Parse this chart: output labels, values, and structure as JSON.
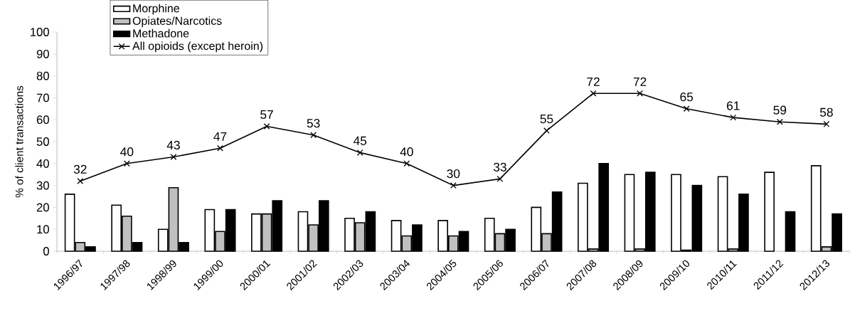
{
  "chart_data": {
    "type": "bar",
    "ylabel": "% of client transactions",
    "categories": [
      "1996/97",
      "1997/98",
      "1998/99",
      "1999/00",
      "2000/01",
      "2001/02",
      "2002/03",
      "2003/04",
      "2004/05",
      "2005/06",
      "2006/07",
      "2007/08",
      "2008/09",
      "2009/10",
      "2010/11",
      "2011/12",
      "2012/13"
    ],
    "series": [
      {
        "name": "Morphine",
        "color": "#ffffff",
        "values": [
          26,
          21,
          10,
          19,
          17,
          18,
          15,
          14,
          14,
          15,
          20,
          31,
          35,
          35,
          34,
          36,
          39
        ]
      },
      {
        "name": "Opiates/Narcotics",
        "color": "#c0c0c0",
        "values": [
          4,
          16,
          29,
          9,
          17,
          12,
          13,
          7,
          7,
          8,
          8,
          1,
          1,
          0.5,
          1,
          null,
          2
        ]
      },
      {
        "name": "Methadone",
        "color": "#000000",
        "values": [
          2,
          4,
          4,
          19,
          23,
          23,
          18,
          12,
          9,
          10,
          27,
          40,
          36,
          30,
          26,
          18,
          17
        ]
      },
      {
        "name": "All opioids (except heroin)",
        "type": "line",
        "color": "#000000",
        "marker": "cross",
        "values": [
          32,
          40,
          43,
          47,
          57,
          53,
          45,
          40,
          30,
          33,
          55,
          72,
          72,
          65,
          61,
          59,
          58
        ],
        "value_labels": [
          "32",
          "40",
          "43",
          "47",
          "57",
          "53",
          "45",
          "40",
          "30",
          "33",
          "55",
          "72",
          "72",
          "65",
          "61",
          "59",
          "58"
        ]
      }
    ],
    "ylim": [
      0,
      100
    ],
    "yticks": [
      0,
      10,
      20,
      30,
      40,
      50,
      60,
      70,
      80,
      90,
      100
    ],
    "grid": false,
    "legend": "top left"
  }
}
